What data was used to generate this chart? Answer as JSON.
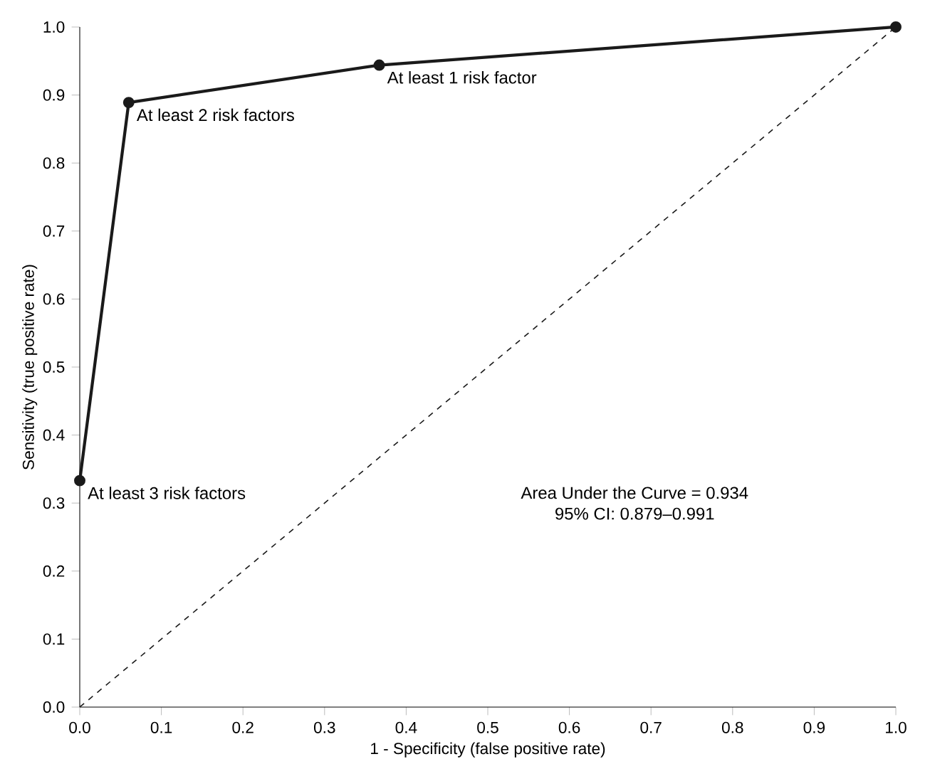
{
  "chart_data": {
    "type": "line",
    "xlabel": "1 - Specificity (false positive rate)",
    "ylabel": "Sensitivity (true positive rate)",
    "xlim": [
      0,
      1
    ],
    "ylim": [
      0,
      1
    ],
    "xticks": [
      {
        "value": 0,
        "label": "0.0"
      },
      0.1,
      0.2,
      0.3,
      0.4,
      0.5,
      0.6,
      0.7,
      0.8,
      0.9,
      {
        "value": 1,
        "label": "1.0"
      }
    ],
    "yticks": [
      {
        "value": 0,
        "label": "0.0"
      },
      0.1,
      0.2,
      0.3,
      0.4,
      0.5,
      0.6,
      0.7,
      0.8,
      0.9,
      {
        "value": 1,
        "label": "1.0"
      }
    ],
    "series": [
      {
        "color": "#1a1a1a",
        "x": [
          0,
          0.06,
          0.367,
          1
        ],
        "values": [
          0.333,
          0.889,
          0.944,
          1
        ],
        "marker": "circle",
        "line_style": "solid"
      },
      {
        "color": "#1a1a1a",
        "x": [
          0,
          1
        ],
        "values": [
          0,
          1
        ],
        "marker": "none",
        "line_style": "dashed"
      }
    ],
    "annotations": [
      {
        "text": "At least 3 risk factors",
        "x": 0,
        "y": 0.333
      },
      {
        "text": "At least 2 risk factors",
        "x": 0.06,
        "y": 0.889
      },
      {
        "text": "At least 1 risk factor",
        "x": 0.367,
        "y": 0.944
      },
      "Area Under the Curve = 0.934",
      "95% CI: 0.879–0.991"
    ],
    "grid": false
  }
}
